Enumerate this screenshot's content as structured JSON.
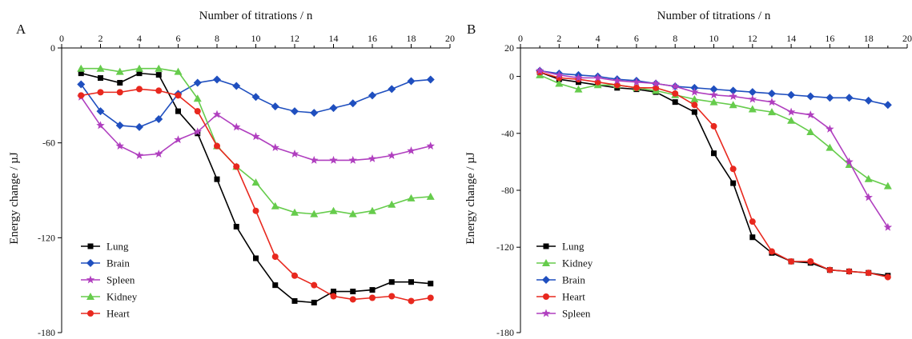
{
  "chart_data": [
    {
      "type": "line",
      "panel_label": "A",
      "xlabel": "Number of titrations / n",
      "ylabel": "Energy change / µJ",
      "xlim": [
        0,
        20
      ],
      "ylim": [
        -180,
        0
      ],
      "x_ticks": [
        0,
        2,
        4,
        6,
        8,
        10,
        12,
        14,
        16,
        18,
        20
      ],
      "y_ticks": [
        0,
        -60,
        -120,
        -180
      ],
      "x_axis_position": "top",
      "grid": false,
      "legend_position": "bottom-left",
      "x": [
        1,
        2,
        3,
        4,
        5,
        6,
        7,
        8,
        9,
        10,
        11,
        12,
        13,
        14,
        15,
        16,
        17,
        18,
        19
      ],
      "series": [
        {
          "name": "Lung",
          "color": "#000000",
          "marker": "square",
          "values": [
            -16,
            -19,
            -22,
            -16,
            -17,
            -40,
            -54,
            -83,
            -113,
            -133,
            -150,
            -160,
            -161,
            -154,
            -154,
            -153,
            -148,
            -148,
            -149
          ]
        },
        {
          "name": "Brain",
          "color": "#1f4fbf",
          "marker": "diamond",
          "values": [
            -23,
            -40,
            -49,
            -50,
            -45,
            -29,
            -22,
            -20,
            -24,
            -31,
            -37,
            -40,
            -41,
            -38,
            -35,
            -30,
            -26,
            -21,
            -20
          ]
        },
        {
          "name": "Spleen",
          "color": "#b03fbf",
          "marker": "star",
          "values": [
            -31,
            -49,
            -62,
            -68,
            -67,
            -58,
            -53,
            -42,
            -50,
            -56,
            -63,
            -67,
            -71,
            -71,
            -71,
            -70,
            -68,
            -65,
            -62
          ]
        },
        {
          "name": "Kidney",
          "color": "#66cc4c",
          "marker": "triangle",
          "values": [
            -13,
            -13,
            -15,
            -13,
            -13,
            -15,
            -32,
            -62,
            -75,
            -85,
            -100,
            -104,
            -105,
            -103,
            -105,
            -103,
            -99,
            -95,
            -94
          ]
        },
        {
          "name": "Heart",
          "color": "#e8281e",
          "marker": "circle",
          "values": [
            -30,
            -28,
            -28,
            -26,
            -27,
            -30,
            -40,
            -62,
            -75,
            -103,
            -132,
            -144,
            -150,
            -157,
            -159,
            -158,
            -157,
            -160,
            -158
          ]
        }
      ]
    },
    {
      "type": "line",
      "panel_label": "B",
      "xlabel": "Number of titrations / n",
      "ylabel": "Energy change / µJ",
      "xlim": [
        0,
        20
      ],
      "ylim": [
        -180,
        20
      ],
      "x_ticks": [
        0,
        2,
        4,
        6,
        8,
        10,
        12,
        14,
        16,
        18,
        20
      ],
      "y_ticks": [
        20,
        0,
        -40,
        -80,
        -120,
        -180
      ],
      "x_axis_position": "top",
      "grid": false,
      "legend_position": "bottom-left",
      "x": [
        1,
        2,
        3,
        4,
        5,
        6,
        7,
        8,
        9,
        10,
        11,
        12,
        13,
        14,
        15,
        16,
        17,
        18,
        19
      ],
      "series": [
        {
          "name": "Lung",
          "color": "#000000",
          "marker": "square",
          "values": [
            3,
            -2,
            -4,
            -6,
            -8,
            -9,
            -11,
            -18,
            -25,
            -54,
            -75,
            -113,
            -124,
            -130,
            -131,
            -136,
            -137,
            -138,
            -140
          ]
        },
        {
          "name": "Kidney",
          "color": "#66cc4c",
          "marker": "triangle",
          "values": [
            1,
            -5,
            -9,
            -6,
            -6,
            -8,
            -10,
            -13,
            -16,
            -18,
            -20,
            -23,
            -25,
            -31,
            -39,
            -50,
            -62,
            -72,
            -77
          ]
        },
        {
          "name": "Brain",
          "color": "#1f4fbf",
          "marker": "diamond",
          "values": [
            4,
            2,
            1,
            0,
            -2,
            -3,
            -5,
            -7,
            -8,
            -9,
            -10,
            -11,
            -12,
            -13,
            -14,
            -15,
            -15,
            -17,
            -20
          ]
        },
        {
          "name": "Heart",
          "color": "#e8281e",
          "marker": "circle",
          "values": [
            3,
            -1,
            -2,
            -4,
            -6,
            -8,
            -8,
            -12,
            -20,
            -35,
            -65,
            -102,
            -123,
            -130,
            -130,
            -136,
            -137,
            -138,
            -141
          ]
        },
        {
          "name": "Spleen",
          "color": "#b03fbf",
          "marker": "star",
          "values": [
            4,
            1,
            -1,
            -1,
            -3,
            -4,
            -5,
            -7,
            -11,
            -13,
            -14,
            -16,
            -18,
            -25,
            -27,
            -37,
            -60,
            -85,
            -106
          ]
        }
      ]
    }
  ]
}
